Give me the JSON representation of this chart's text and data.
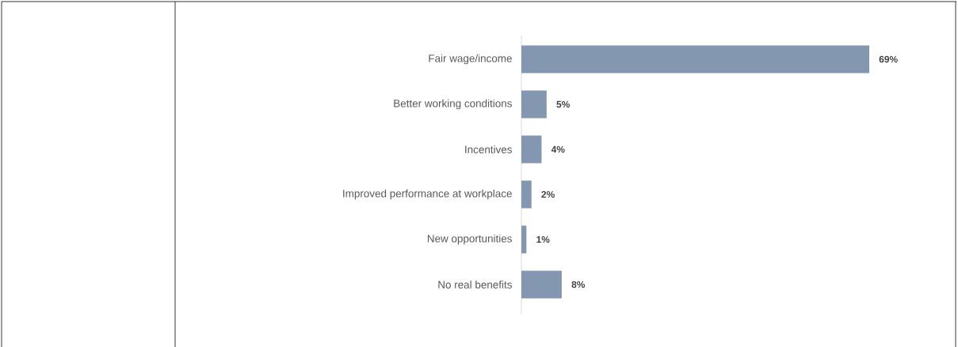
{
  "chart_data": {
    "type": "bar",
    "orientation": "horizontal",
    "categories": [
      "Fair wage/income",
      "Better working conditions",
      "Incentives",
      "Improved performance at workplace",
      "New opportunities",
      "No real benefits"
    ],
    "values": [
      69,
      5,
      4,
      2,
      1,
      8
    ],
    "value_labels": [
      "69%",
      "5%",
      "4%",
      "2%",
      "1%",
      "8%"
    ],
    "color": "#8497b0"
  }
}
